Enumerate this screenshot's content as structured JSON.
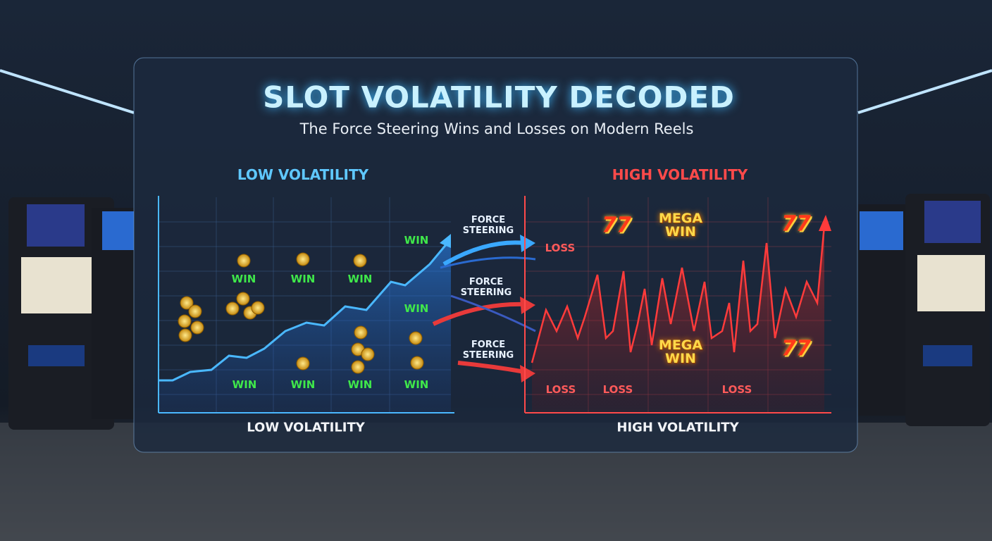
{
  "header": {
    "title": "SLOT VOLATILITY DECODED",
    "subtitle": "The Force Steering Wins and Losses on Modern Reels"
  },
  "low_panel": {
    "heading": "LOW VOLATILITY",
    "footer": "LOW VOLATILITY",
    "win_labels": [
      "WIN",
      "WIN",
      "WIN",
      "WIN",
      "WIN",
      "WIN",
      "WIN",
      "WIN",
      "WIN"
    ]
  },
  "center": {
    "arrow_labels": [
      "FORCE STEERING",
      "FORCE STEERING",
      "FORCE STEERING"
    ]
  },
  "high_panel": {
    "heading": "HIGH VOLATILITY",
    "footer": "HIGH VOLATILITY",
    "loss_labels": [
      "LOSS",
      "LOSS",
      "LOSS",
      "LOSS"
    ],
    "mega_labels": [
      "MEGA WIN",
      "MEGA WIN"
    ],
    "seven_labels": [
      "77",
      "77",
      "77"
    ]
  }
}
